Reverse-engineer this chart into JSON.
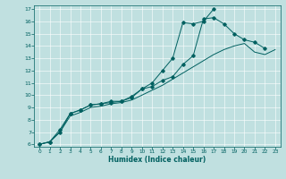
{
  "xlabel": "Humidex (Indice chaleur)",
  "bg_color": "#c0e0e0",
  "line_color": "#006060",
  "xlim": [
    -0.5,
    23.5
  ],
  "ylim": [
    5.8,
    17.3
  ],
  "xticks": [
    0,
    1,
    2,
    3,
    4,
    5,
    6,
    7,
    8,
    9,
    10,
    11,
    12,
    13,
    14,
    15,
    16,
    17,
    18,
    19,
    20,
    21,
    22,
    23
  ],
  "yticks": [
    6,
    7,
    8,
    9,
    10,
    11,
    12,
    13,
    14,
    15,
    16,
    17
  ],
  "line1_x": [
    0,
    1,
    2,
    3,
    4,
    5,
    6,
    7,
    8,
    9,
    10,
    11,
    12,
    13,
    14,
    15,
    16,
    17
  ],
  "line1_y": [
    6.0,
    6.2,
    7.0,
    8.5,
    8.8,
    9.2,
    9.3,
    9.4,
    9.5,
    9.8,
    10.5,
    11.0,
    12.0,
    13.0,
    15.9,
    15.8,
    16.0,
    17.0
  ],
  "line2_x": [
    0,
    1,
    2,
    3,
    4,
    5,
    6,
    7,
    8,
    9,
    10,
    11,
    12,
    13,
    14,
    15,
    16,
    17,
    18,
    19,
    20,
    21,
    22
  ],
  "line2_y": [
    6.0,
    6.2,
    7.2,
    8.5,
    8.8,
    9.2,
    9.3,
    9.5,
    9.5,
    9.9,
    10.5,
    10.7,
    11.2,
    11.5,
    12.5,
    13.2,
    16.2,
    16.3,
    15.8,
    15.0,
    14.5,
    14.3,
    13.8
  ],
  "line3_x": [
    0,
    1,
    2,
    3,
    4,
    5,
    6,
    7,
    8,
    9,
    10,
    11,
    12,
    13,
    14,
    15,
    16,
    17,
    18,
    19,
    20,
    21,
    22,
    23
  ],
  "line3_y": [
    6.0,
    6.2,
    7.0,
    8.3,
    8.6,
    9.0,
    9.1,
    9.3,
    9.4,
    9.6,
    10.0,
    10.4,
    10.8,
    11.3,
    11.8,
    12.3,
    12.8,
    13.3,
    13.7,
    14.0,
    14.2,
    13.5,
    13.3,
    13.7
  ]
}
